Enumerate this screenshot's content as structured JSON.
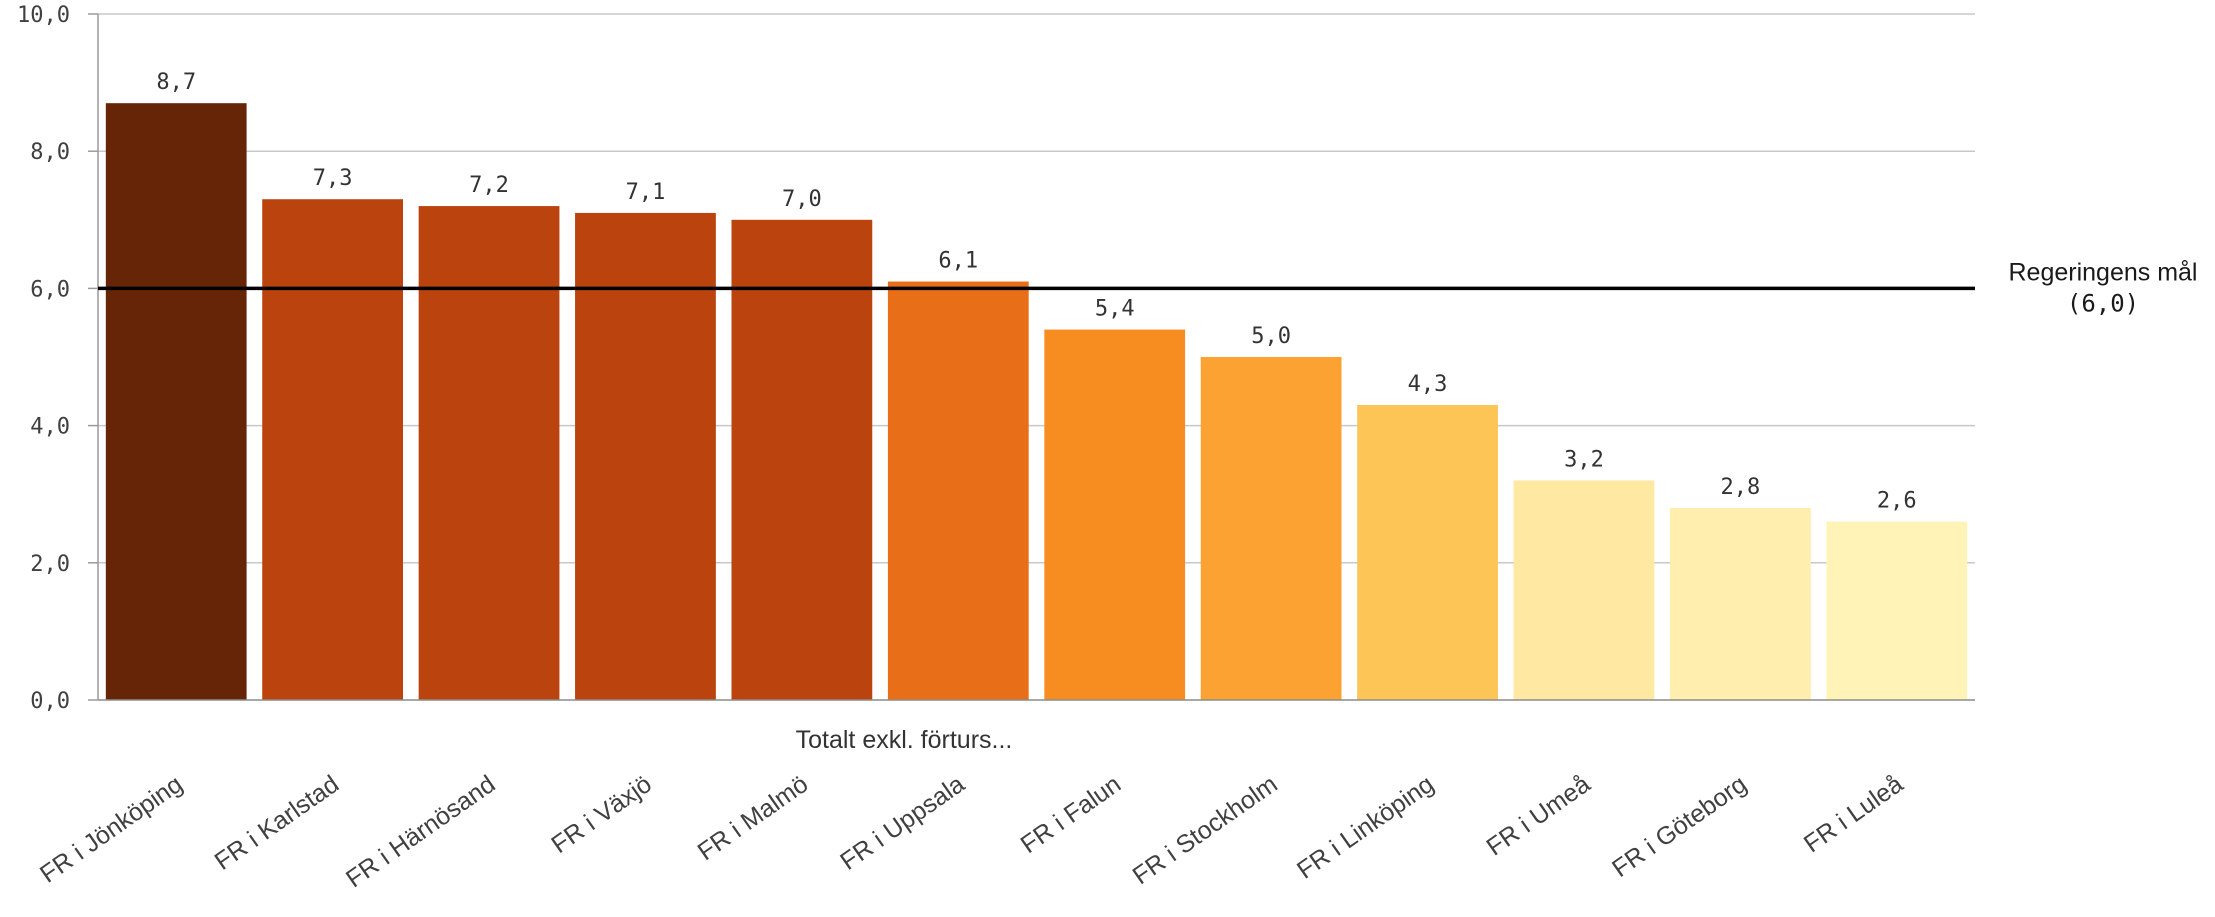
{
  "chart_data": {
    "type": "bar",
    "xlabel": "Totalt exkl. förturs...",
    "ylabel": "",
    "ylim": [
      0,
      10
    ],
    "yticks": [
      "0,0",
      "2,0",
      "4,0",
      "6,0",
      "8,0",
      "10,0"
    ],
    "categories": [
      "FR i Jönköping",
      "FR i Karlstad",
      "FR i Härnösand",
      "FR i Växjö",
      "FR i Malmö",
      "FR i Uppsala",
      "FR i Falun",
      "FR i Stockholm",
      "FR i Linköping",
      "FR i Umeå",
      "FR i Göteborg",
      "FR i Luleå"
    ],
    "values": [
      8.7,
      7.3,
      7.2,
      7.1,
      7.0,
      6.1,
      5.4,
      5.0,
      4.3,
      3.2,
      2.8,
      2.6
    ],
    "value_labels": [
      "8,7",
      "7,3",
      "7,2",
      "7,1",
      "7,0",
      "6,1",
      "5,4",
      "5,0",
      "4,3",
      "3,2",
      "2,8",
      "2,6"
    ],
    "bar_colors": [
      "#662506",
      "#BA430E",
      "#BA430E",
      "#BA430E",
      "#BA430E",
      "#E86E17",
      "#F78D21",
      "#FBA232",
      "#FDC556",
      "#FFE8A2",
      "#FFEEAD",
      "#FFF3B8"
    ],
    "grid": true,
    "reference_line": {
      "value": 6.0,
      "label": "Regeringens mål",
      "value_label": "(6,0)",
      "color": "#000000"
    }
  }
}
